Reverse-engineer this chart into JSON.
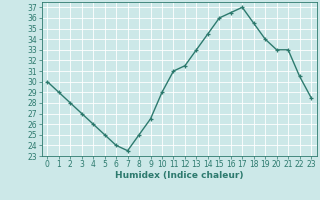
{
  "x": [
    0,
    1,
    2,
    3,
    4,
    5,
    6,
    7,
    8,
    9,
    10,
    11,
    12,
    13,
    14,
    15,
    16,
    17,
    18,
    19,
    20,
    21,
    22,
    23
  ],
  "y": [
    30,
    29,
    28,
    27,
    26,
    25,
    24,
    23.5,
    25,
    26.5,
    29,
    31,
    31.5,
    33,
    34.5,
    36,
    36.5,
    37,
    35.5,
    34,
    33,
    33,
    30.5,
    28.5
  ],
  "xlabel": "Humidex (Indice chaleur)",
  "ylabel": "",
  "xlim": [
    -0.5,
    23.5
  ],
  "ylim": [
    23,
    37.5
  ],
  "yticks": [
    23,
    24,
    25,
    26,
    27,
    28,
    29,
    30,
    31,
    32,
    33,
    34,
    35,
    36,
    37
  ],
  "xticks": [
    0,
    1,
    2,
    3,
    4,
    5,
    6,
    7,
    8,
    9,
    10,
    11,
    12,
    13,
    14,
    15,
    16,
    17,
    18,
    19,
    20,
    21,
    22,
    23
  ],
  "line_color": "#2d7a6e",
  "marker": "+",
  "marker_color": "#2d7a6e",
  "bg_color": "#cce8e8",
  "grid_color": "#ffffff",
  "tick_label_fontsize": 5.5,
  "xlabel_fontsize": 6.5,
  "line_width": 1.0
}
